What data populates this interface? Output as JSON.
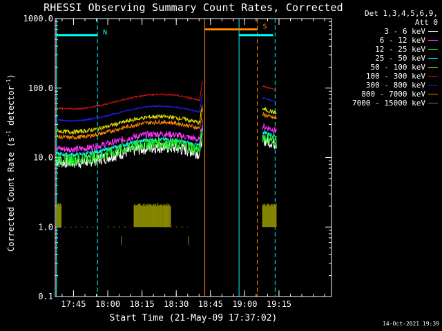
{
  "chart_data": {
    "type": "line",
    "title": "RHESSI Observing Summary Count Rates, Corrected",
    "xlabel": "Start Time (21-May-09 17:37:02)",
    "ylabel_main": "Corrected Count Rate (s",
    "ylabel_sup1": "-1",
    "ylabel_mid": " detector",
    "ylabel_sup2": "-1",
    "ylabel_end": ")",
    "yscale": "log",
    "ylim": [
      0.1,
      1000
    ],
    "xlim_minutes": [
      37,
      158
    ],
    "y_ticks": [
      {
        "value": 0.1,
        "label": "0.1"
      },
      {
        "value": 1,
        "label": "1.0"
      },
      {
        "value": 10,
        "label": "10.0"
      },
      {
        "value": 100,
        "label": "100.0"
      },
      {
        "value": 1000,
        "label": "1000.0"
      }
    ],
    "x_ticks": [
      {
        "minute": 45,
        "label": "17:45"
      },
      {
        "minute": 60,
        "label": "18:00"
      },
      {
        "minute": 75,
        "label": "18:15"
      },
      {
        "minute": 90,
        "label": "18:30"
      },
      {
        "minute": 105,
        "label": "18:45"
      },
      {
        "minute": 120,
        "label": "19:00"
      },
      {
        "minute": 135,
        "label": "19:15"
      }
    ],
    "legend_header": [
      "Det 1,3,4,5,6,9,",
      "Att 0"
    ],
    "series": [
      {
        "name": "3 - 6 keV",
        "color": "#ffffff",
        "amp": 0.22,
        "offset": 0.93,
        "noise": 0.09
      },
      {
        "name": "6 - 12 keV",
        "color": "#ff33ff",
        "amp": 0.22,
        "offset": 1.12,
        "noise": 0.05
      },
      {
        "name": "12 - 25 keV",
        "color": "#22ee22",
        "amp": 0.24,
        "offset": 0.97,
        "noise": 0.09
      },
      {
        "name": "25 - 50 keV",
        "color": "#00ffff",
        "amp": 0.22,
        "offset": 1.04,
        "noise": 0.03
      },
      {
        "name": "50 - 100 keV",
        "color": "#dddd00",
        "amp": 0.22,
        "offset": 1.37,
        "noise": 0.03
      },
      {
        "name": "100 - 300 keV",
        "color": "#ee1111",
        "amp": 0.21,
        "offset": 1.7,
        "noise": 0.01
      },
      {
        "name": "300 - 800 keV",
        "color": "#2222ff",
        "amp": 0.21,
        "offset": 1.53,
        "noise": 0.01
      },
      {
        "name": "800 - 7000 keV",
        "color": "#ff8800",
        "amp": 0.22,
        "offset": 1.29,
        "noise": 0.03
      },
      {
        "name": "7000 - 15000 keV",
        "color": "#888800",
        "amp": 0,
        "offset": 0,
        "noise": 0
      }
    ],
    "flag_bars": [
      {
        "label": "N",
        "color": "#00ffff",
        "x1": 37.5,
        "x2": 55.5,
        "value": 580
      },
      {
        "label": "S",
        "color": "#ff8800",
        "x1": 102.5,
        "x2": 125.5,
        "value": 700
      },
      {
        "label": "",
        "color": "#00ffff",
        "x1": 117.5,
        "x2": 132.5,
        "value": 580
      }
    ],
    "vlines": [
      {
        "minute": 37.5,
        "color": "#00ffff",
        "style": "solid"
      },
      {
        "minute": 55.5,
        "color": "#00ffff",
        "style": "dashed"
      },
      {
        "minute": 102.5,
        "color": "#ff8800",
        "style": "solid"
      },
      {
        "minute": 117.5,
        "color": "#00ffff",
        "style": "solid"
      },
      {
        "minute": 125.5,
        "color": "#ff8800",
        "style": "dashed"
      },
      {
        "minute": 133.3,
        "color": "#00ffff",
        "style": "dashed"
      }
    ],
    "data_segments": [
      {
        "start_minute": 37.5,
        "end_minute": 101.5
      },
      {
        "start_minute": 127.8,
        "end_minute": 133.9
      }
    ]
  },
  "timestamp": "14-Oct-2021 19:39"
}
